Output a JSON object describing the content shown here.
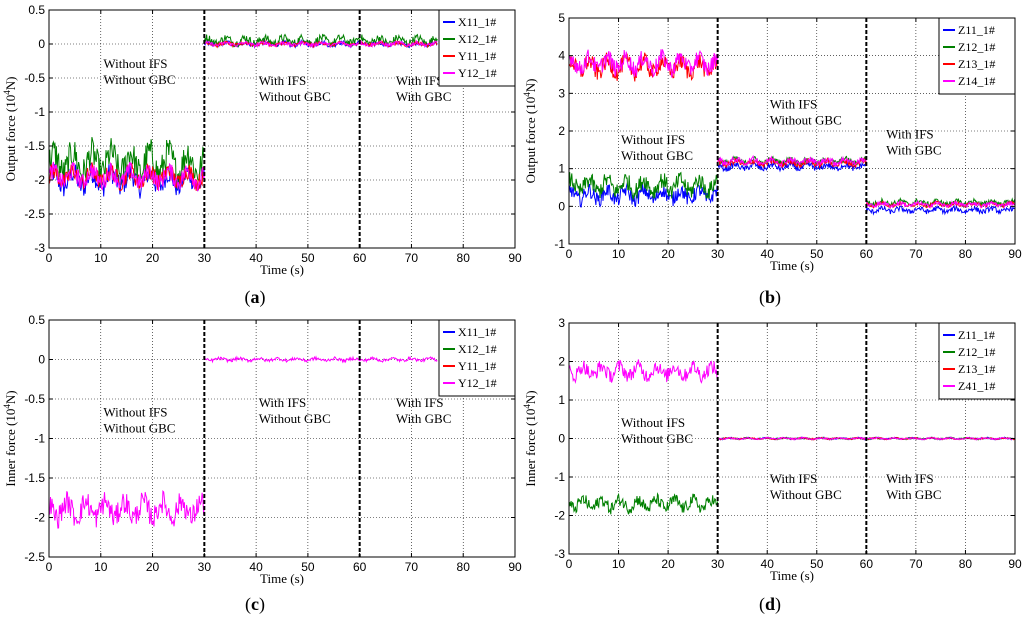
{
  "colors": {
    "blue": "#0000ff",
    "green": "#008000",
    "red": "#ff0000",
    "magenta": "#ff00ff"
  },
  "chart_data": [
    {
      "type": "line",
      "caption_pre": "(",
      "caption_letter": "a",
      "caption_post": ")",
      "xlabel": "Time (s)",
      "ylabel_pre": "Output force (10",
      "ylabel_sup": "4",
      "ylabel_post": "N)",
      "xlim": [
        0,
        90
      ],
      "ylim": [
        -3,
        0.5
      ],
      "xticks": [
        0,
        10,
        20,
        30,
        40,
        50,
        60,
        70,
        80,
        90
      ],
      "yticks": [
        0.5,
        0,
        -0.5,
        -1,
        -1.5,
        -2,
        -2.5,
        -3
      ],
      "ytick_labels": [
        "0.5",
        "0",
        "-0.5",
        "-1",
        "-1.5",
        "-2",
        "-2.5",
        "-3"
      ],
      "grid": true,
      "legend_position": "top-right",
      "series": [
        {
          "name": "X11_1#",
          "color": "blue",
          "segments": [
            [
              0,
              30,
              -2.0,
              0.25
            ],
            [
              30,
              75,
              0.0,
              0.05
            ]
          ]
        },
        {
          "name": "X12_1#",
          "color": "green",
          "segments": [
            [
              0,
              30,
              -1.75,
              0.35
            ],
            [
              30,
              75,
              0.05,
              0.09
            ]
          ]
        },
        {
          "name": "Y11_1#",
          "color": "red",
          "segments": [
            [
              0,
              30,
              -1.95,
              0.2
            ],
            [
              30,
              75,
              0.0,
              0.04
            ]
          ]
        },
        {
          "name": "Y12_1#",
          "color": "magenta",
          "segments": [
            [
              0,
              30,
              -1.95,
              0.2
            ],
            [
              30,
              75,
              0.0,
              0.04
            ]
          ]
        }
      ],
      "dividers": [
        30,
        60
      ],
      "annotations": [
        {
          "lines": [
            "Without IFS",
            "Without GBC"
          ],
          "x": 10.5,
          "y": -0.35
        },
        {
          "lines": [
            "With IFS",
            "Without GBC"
          ],
          "x": 40.5,
          "y": -0.6
        },
        {
          "lines": [
            "With IFS",
            "With GBC"
          ],
          "x": 67,
          "y": -0.6
        }
      ]
    },
    {
      "type": "line",
      "caption_pre": "(",
      "caption_letter": "b",
      "caption_post": ")",
      "xlabel": "Time (s)",
      "ylabel_pre": "Output force (10",
      "ylabel_sup": "4",
      "ylabel_post": "N)",
      "xlim": [
        0,
        90
      ],
      "ylim": [
        -1,
        5
      ],
      "xticks": [
        0,
        10,
        20,
        30,
        40,
        50,
        60,
        70,
        80,
        90
      ],
      "yticks": [
        5,
        4,
        3,
        2,
        1,
        0,
        -1
      ],
      "ytick_labels": [
        "5",
        "4",
        "3",
        "2",
        "1",
        "0",
        "-1"
      ],
      "grid": true,
      "legend_position": "top-right",
      "series": [
        {
          "name": "Z11_1#",
          "color": "blue",
          "segments": [
            [
              0,
              30,
              0.3,
              0.3
            ],
            [
              30,
              60,
              1.05,
              0.12
            ],
            [
              60,
              90,
              -0.1,
              0.1
            ]
          ]
        },
        {
          "name": "Z12_1#",
          "color": "green",
          "segments": [
            [
              0,
              30,
              0.55,
              0.35
            ],
            [
              30,
              60,
              1.2,
              0.12
            ],
            [
              60,
              90,
              0.1,
              0.1
            ]
          ]
        },
        {
          "name": "Z13_1#",
          "color": "red",
          "segments": [
            [
              0,
              30,
              3.7,
              0.35
            ],
            [
              30,
              60,
              1.15,
              0.12
            ],
            [
              60,
              90,
              0.05,
              0.08
            ]
          ]
        },
        {
          "name": "Z14_1#",
          "color": "magenta",
          "segments": [
            [
              0,
              30,
              3.8,
              0.35
            ],
            [
              30,
              60,
              1.2,
              0.12
            ],
            [
              60,
              90,
              0.05,
              0.08
            ]
          ]
        }
      ],
      "dividers": [
        30,
        60
      ],
      "annotations": [
        {
          "lines": [
            "Without IFS",
            "Without GBC"
          ],
          "x": 10.5,
          "y": 1.65
        },
        {
          "lines": [
            "With IFS",
            "Without GBC"
          ],
          "x": 40.5,
          "y": 2.6
        },
        {
          "lines": [
            "With IFS",
            "With GBC"
          ],
          "x": 64,
          "y": 1.8
        }
      ]
    },
    {
      "type": "line",
      "caption_pre": "(",
      "caption_letter": "c",
      "caption_post": ")",
      "xlabel": "Time (s)",
      "ylabel_pre": "Inner force (10",
      "ylabel_sup": "4",
      "ylabel_post": "N)",
      "xlim": [
        0,
        90
      ],
      "ylim": [
        -2.5,
        0.5
      ],
      "xticks": [
        0,
        10,
        20,
        30,
        40,
        50,
        60,
        70,
        80,
        90
      ],
      "yticks": [
        0.5,
        0,
        -0.5,
        -1,
        -1.5,
        -2,
        -2.5
      ],
      "ytick_labels": [
        "0.5",
        "0",
        "-0.5",
        "-1",
        "-1.5",
        "-2",
        "-2.5"
      ],
      "grid": true,
      "legend_position": "top-right",
      "series": [
        {
          "name": "X11_1#",
          "color": "blue",
          "segments": []
        },
        {
          "name": "X12_1#",
          "color": "green",
          "segments": []
        },
        {
          "name": "Y11_1#",
          "color": "red",
          "segments": []
        },
        {
          "name": "Y12_1#",
          "color": "magenta",
          "segments": [
            [
              0,
              30,
              -1.9,
              0.22
            ],
            [
              30,
              75,
              0.0,
              0.03
            ]
          ]
        }
      ],
      "dividers": [
        30,
        60
      ],
      "annotations": [
        {
          "lines": [
            "Without IFS",
            "Without GBC"
          ],
          "x": 10.5,
          "y": -0.72
        },
        {
          "lines": [
            "With IFS",
            "Without GBC"
          ],
          "x": 40.5,
          "y": -0.6
        },
        {
          "lines": [
            "With IFS",
            "With GBC"
          ],
          "x": 67,
          "y": -0.6
        }
      ]
    },
    {
      "type": "line",
      "caption_pre": "(",
      "caption_letter": "d",
      "caption_post": ")",
      "xlabel": "Time (s)",
      "ylabel_pre": "Inner force (10",
      "ylabel_sup": "4",
      "ylabel_post": "N)",
      "xlim": [
        0,
        90
      ],
      "ylim": [
        -3,
        3
      ],
      "xticks": [
        0,
        10,
        20,
        30,
        40,
        50,
        60,
        70,
        80,
        90
      ],
      "yticks": [
        3,
        2,
        1,
        0,
        -1,
        -2,
        -3
      ],
      "ytick_labels": [
        "3",
        "2",
        "1",
        "0",
        "-1",
        "-2",
        "-3"
      ],
      "grid": true,
      "legend_position": "top-right",
      "series": [
        {
          "name": "Z11_1#",
          "color": "blue",
          "segments": [
            [
              30,
              90,
              0.0,
              0.03
            ]
          ]
        },
        {
          "name": "Z12_1#",
          "color": "green",
          "segments": [
            [
              0,
              30,
              -1.7,
              0.25
            ],
            [
              30,
              90,
              0.0,
              0.03
            ]
          ]
        },
        {
          "name": "Z13_1#",
          "color": "red",
          "segments": [
            [
              30,
              90,
              0.0,
              0.03
            ]
          ]
        },
        {
          "name": "Z41_1#",
          "color": "magenta",
          "segments": [
            [
              0,
              30,
              1.75,
              0.28
            ],
            [
              30,
              90,
              0.0,
              0.03
            ]
          ]
        }
      ],
      "dividers": [
        30,
        60
      ],
      "annotations": [
        {
          "lines": [
            "Without IFS",
            "Without GBC"
          ],
          "x": 10.5,
          "y": 0.3
        },
        {
          "lines": [
            "With IFS",
            "Without GBC"
          ],
          "x": 40.5,
          "y": -1.15
        },
        {
          "lines": [
            "With IFS",
            "With GBC"
          ],
          "x": 64,
          "y": -1.15
        }
      ]
    }
  ]
}
